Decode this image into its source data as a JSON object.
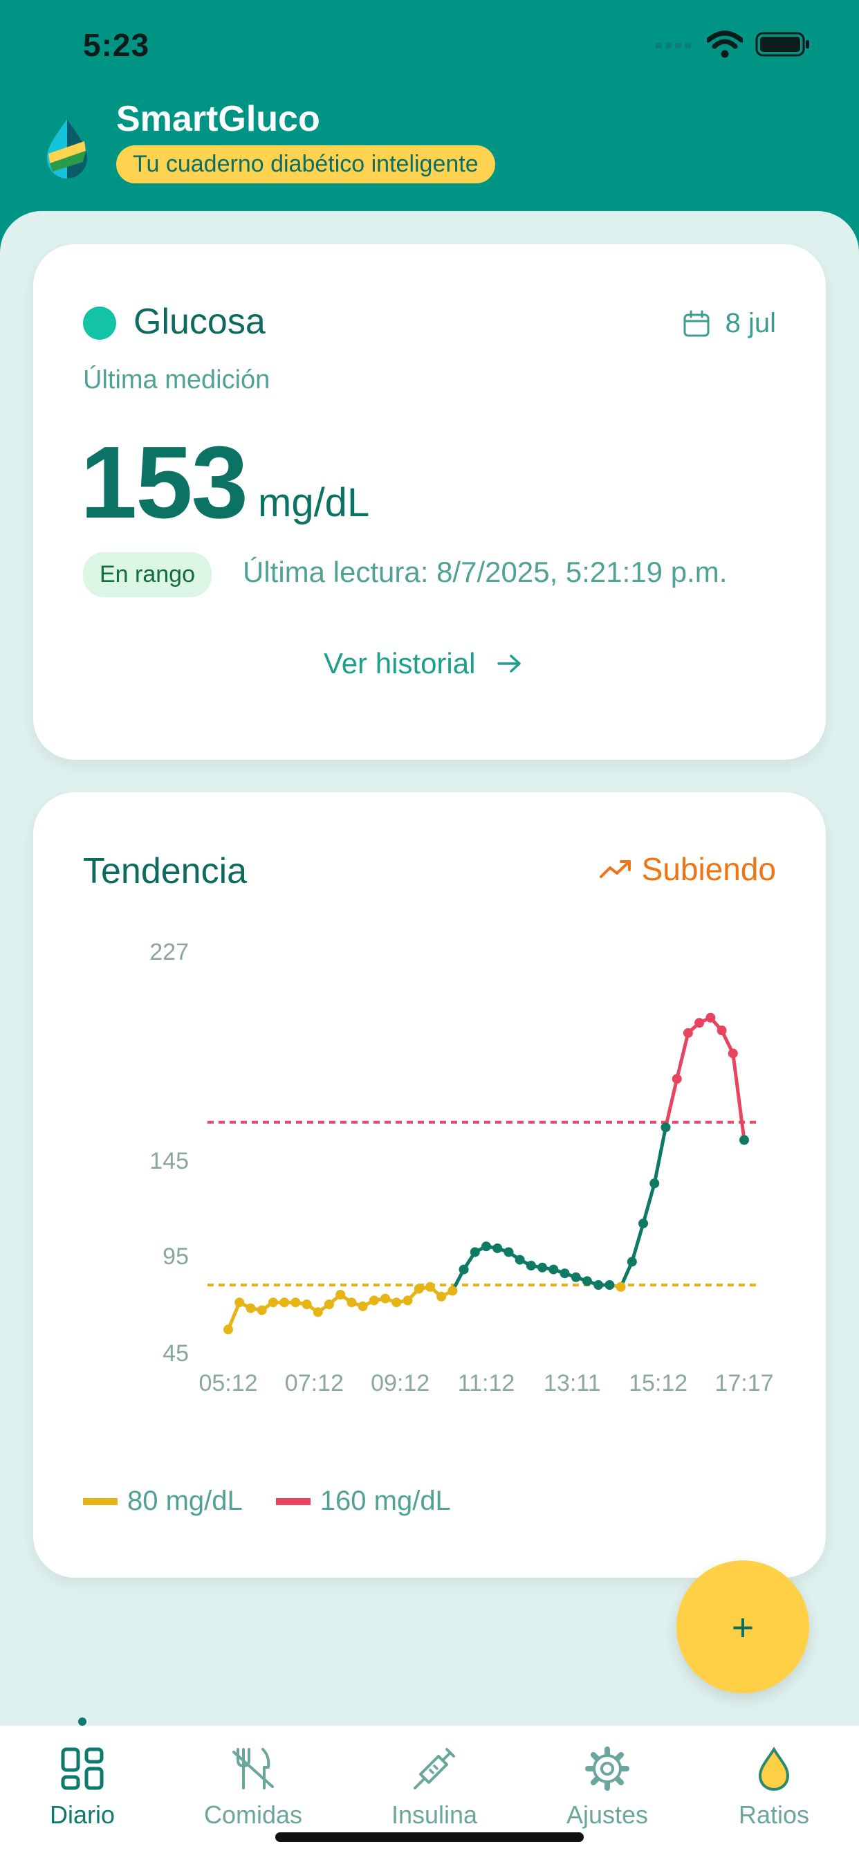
{
  "status_bar": {
    "time": "5:23"
  },
  "header": {
    "title": "SmartGluco",
    "subtitle": "Tu cuaderno diabético inteligente"
  },
  "glucose": {
    "title": "Glucosa",
    "date": "8 jul",
    "subtitle": "Última medición",
    "value": "153",
    "unit": "mg/dL",
    "badge": "En rango",
    "last_reading": "Última lectura: 8/7/2025, 5:21:19 p.m.",
    "history_link": "Ver historial"
  },
  "trend": {
    "title": "Tendencia",
    "status": "Subiendo"
  },
  "chart_data": {
    "type": "line",
    "xlabel": "",
    "ylabel": "",
    "y_ticks": [
      "227",
      "145",
      "95",
      "45"
    ],
    "x_ticks": [
      "05:12",
      "07:12",
      "09:12",
      "11:12",
      "13:11",
      "15:12",
      "17:17"
    ],
    "ylim": [
      45,
      227
    ],
    "thresholds": [
      {
        "label": "80 mg/dL",
        "value": 80,
        "color": "#e7b416"
      },
      {
        "label": "160 mg/dL",
        "value": 160,
        "color": "#e8445f"
      }
    ],
    "series": [
      {
        "values": [
          57,
          71,
          68,
          67,
          71,
          71,
          71,
          70,
          66,
          70,
          75,
          71,
          69,
          72,
          73,
          71,
          72,
          78,
          79,
          74,
          77,
          88,
          97,
          100,
          99,
          97,
          93,
          90,
          89,
          88,
          86,
          84,
          82,
          80,
          80,
          79,
          92,
          112,
          133,
          158,
          177,
          195,
          199,
          201,
          196,
          187,
          153
        ]
      }
    ]
  },
  "legend": [
    {
      "label": "80 mg/dL",
      "color": "#e7b416"
    },
    {
      "label": "160 mg/dL",
      "color": "#e8445f"
    }
  ],
  "fab": {
    "label": "+"
  },
  "tabs": [
    {
      "label": "Diario",
      "icon": "grid-icon"
    },
    {
      "label": "Comidas",
      "icon": "utensils-off-icon"
    },
    {
      "label": "Insulina",
      "icon": "syringe-icon"
    },
    {
      "label": "Ajustes",
      "icon": "gear-icon"
    },
    {
      "label": "Ratios",
      "icon": "drop-icon"
    }
  ],
  "colors": {
    "primary": "#009485",
    "accent": "#ffd34f",
    "in_range": "#0f7a63",
    "low": "#e7b416",
    "high": "#e8445f",
    "trend_up": "#ef7416"
  }
}
